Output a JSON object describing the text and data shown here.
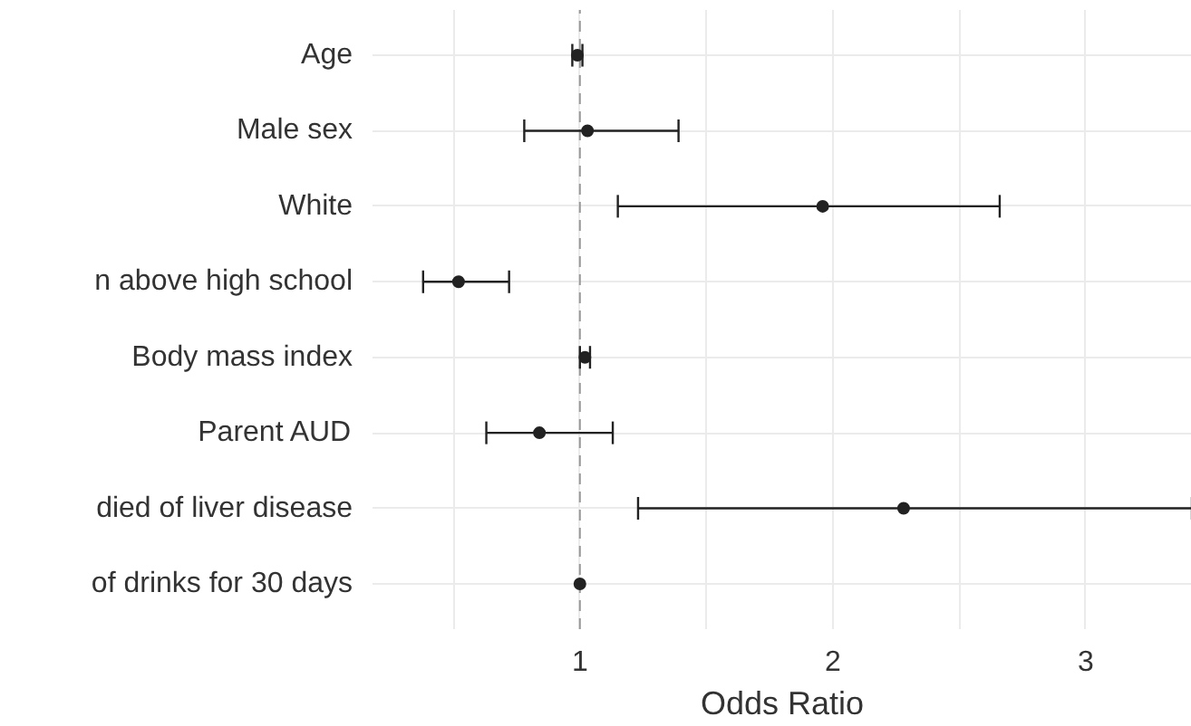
{
  "chart_data": {
    "type": "scatter",
    "orientation": "horizontal",
    "xlabel": "Odds Ratio",
    "categories": [
      "Age",
      "Male sex",
      "White",
      "n above high school",
      "Body mass index",
      "Parent AUD",
      "died of liver disease",
      "of drinks for 30 days"
    ],
    "values": [
      0.99,
      1.03,
      1.96,
      0.52,
      1.02,
      0.84,
      2.28,
      1.0
    ],
    "errors": [
      [
        0.97,
        1.01
      ],
      [
        0.78,
        1.39
      ],
      [
        1.15,
        2.66
      ],
      [
        0.38,
        0.72
      ],
      [
        1.0,
        1.04
      ],
      [
        0.63,
        1.13
      ],
      [
        1.23,
        3.42
      ],
      null
    ],
    "color": "#222222",
    "marker": "circle",
    "xlim": [
      0.18,
      3.42
    ],
    "xticks": [
      {
        "value": 0.5,
        "label": null
      },
      1,
      {
        "value": 1.5,
        "label": null
      },
      2,
      {
        "value": 2.5,
        "label": null
      },
      3
    ],
    "grid": true,
    "ref_lines": [
      {
        "axis": "x",
        "value": 1,
        "label": null,
        "color": "#999999",
        "line_style": "dashed"
      }
    ]
  }
}
